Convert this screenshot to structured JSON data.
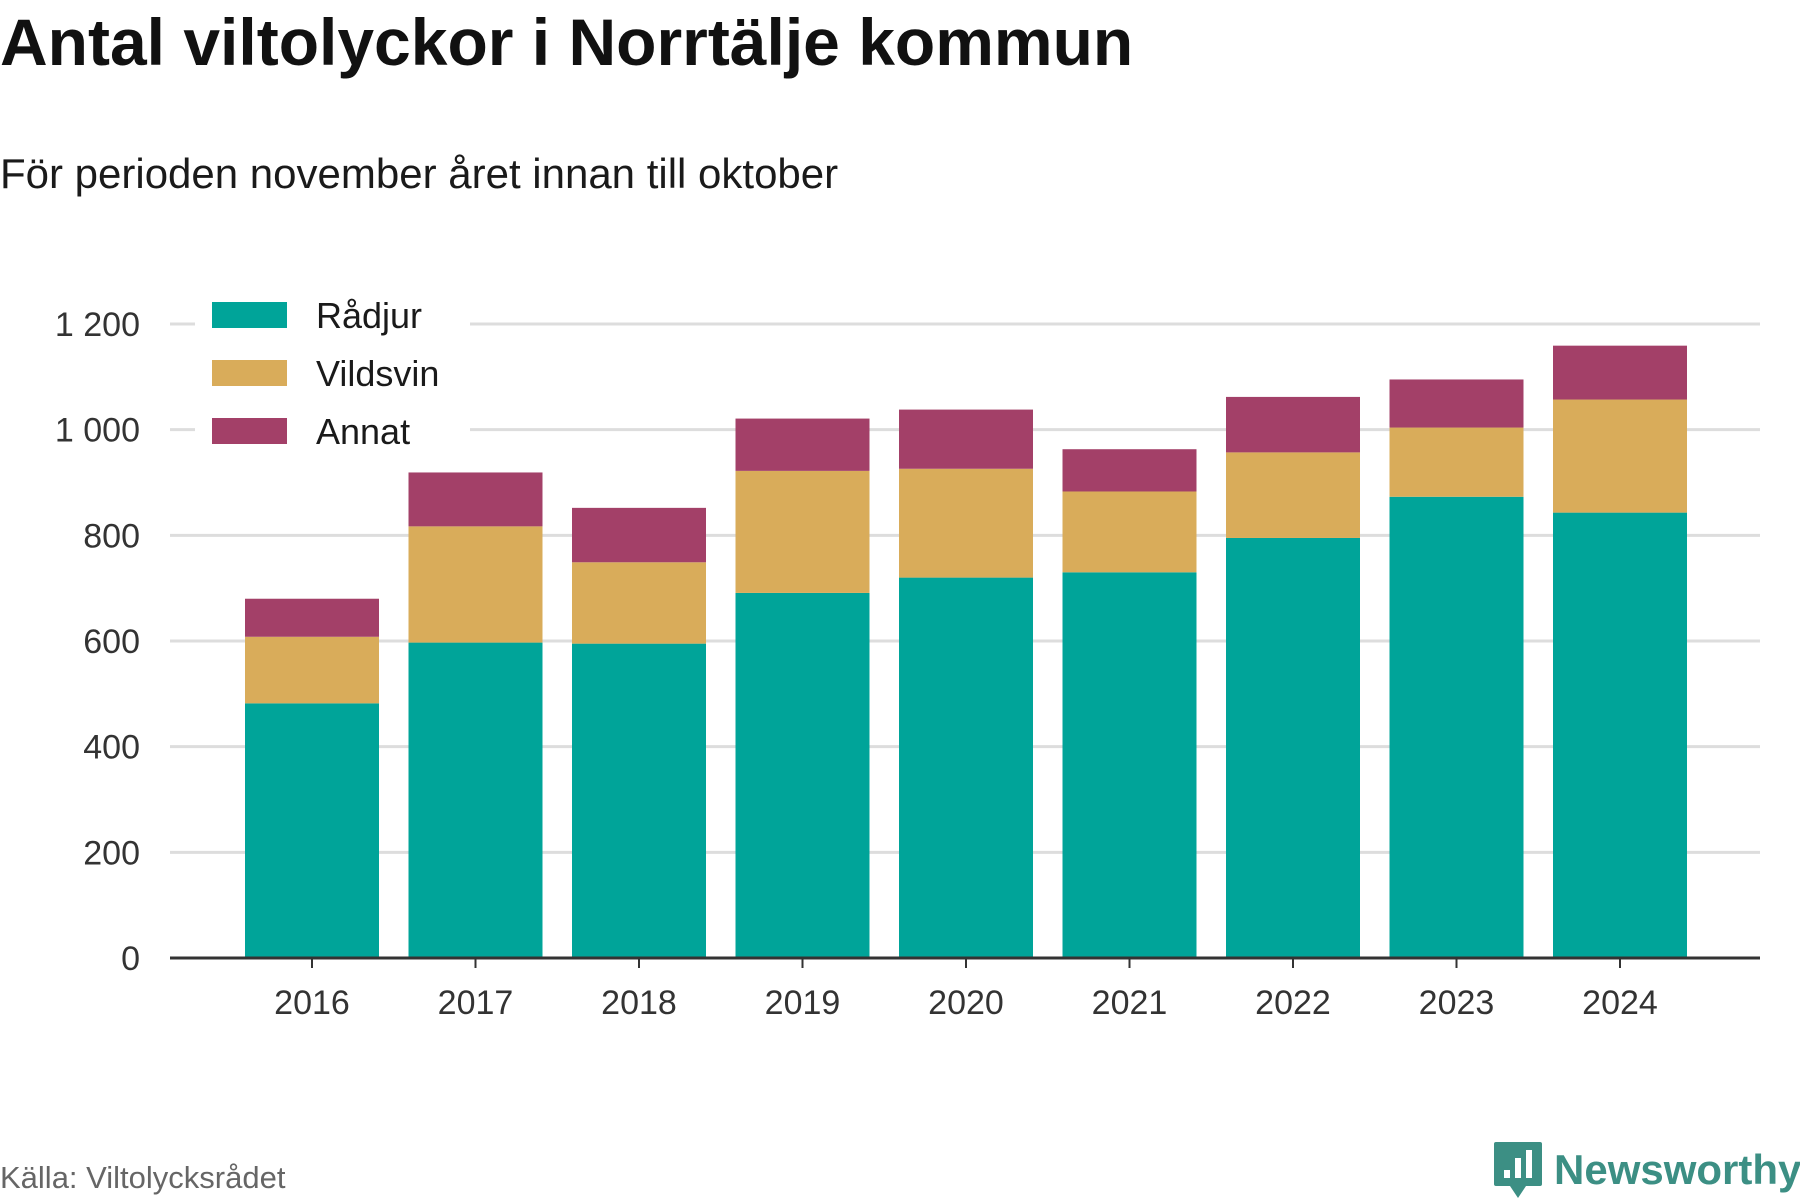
{
  "title": "Antal viltolyckor i Norrtälje kommun",
  "subtitle": "För perioden november året innan till oktober",
  "source": "Källa: Viltolycksrådet",
  "brand": {
    "name": "Newsworthy",
    "icon": "newsworthy-logo-icon",
    "color": "#3c8f84"
  },
  "colors": {
    "Rådjur": "#00a499",
    "Vildsvin": "#d9ac5a",
    "Annat": "#a34068",
    "grid": "#dddddd",
    "axis": "#333333"
  },
  "chart_data": {
    "type": "bar",
    "stacked": true,
    "title": "Antal viltolyckor i Norrtälje kommun",
    "subtitle": "För perioden november året innan till oktober",
    "categories": [
      "2016",
      "2017",
      "2018",
      "2019",
      "2020",
      "2021",
      "2022",
      "2023",
      "2024"
    ],
    "series": [
      {
        "name": "Rådjur",
        "values": [
          482,
          597,
          595,
          691,
          720,
          730,
          795,
          873,
          843
        ]
      },
      {
        "name": "Vildsvin",
        "values": [
          126,
          220,
          154,
          231,
          206,
          153,
          162,
          131,
          214
        ]
      },
      {
        "name": "Annat",
        "values": [
          72,
          102,
          103,
          99,
          112,
          80,
          105,
          91,
          102
        ]
      }
    ],
    "ylim": [
      0,
      1200
    ],
    "yticks": [
      0,
      200,
      400,
      600,
      800,
      1000,
      1200
    ],
    "ytick_labels": [
      "0",
      "200",
      "400",
      "600",
      "800",
      "1 000",
      "1 200"
    ],
    "xlabel": "",
    "ylabel": "",
    "grid": true,
    "legend_position": "top-left"
  }
}
